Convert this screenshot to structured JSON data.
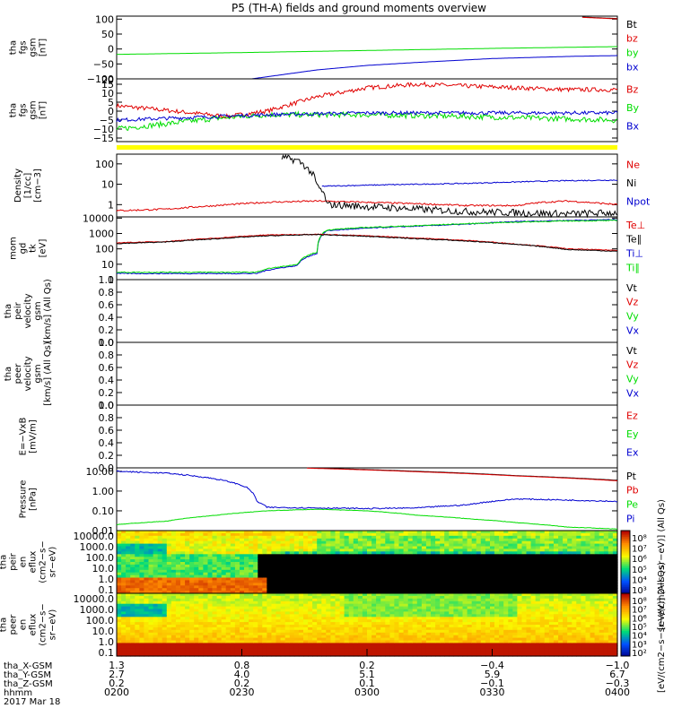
{
  "title": "P5 (TH-A) fields and ground moments overview",
  "colors": {
    "black": "#000000",
    "red": "#e00000",
    "green": "#00dd00",
    "blue": "#0000d0",
    "yellow": "#ffff00"
  },
  "chart_data": [
    {
      "id": "fgs_gsm",
      "type": "line",
      "ylabel": [
        "tha",
        "fgs",
        "gsm",
        "[nT]"
      ],
      "yticks": [
        "100",
        "50",
        "0",
        "−50",
        "−100"
      ],
      "yvalues": [
        100,
        50,
        0,
        -50,
        -100
      ],
      "ylim": [
        -100,
        110
      ],
      "legend": [
        {
          "text": "Bt",
          "color": "black"
        },
        {
          "text": "bz",
          "color": "red"
        },
        {
          "text": "by",
          "color": "green"
        },
        {
          "text": "bx",
          "color": "blue"
        }
      ],
      "series": [
        {
          "name": "by",
          "color": "green",
          "x": [
            0.0,
            0.25,
            0.5,
            0.75,
            1.0
          ],
          "y": [
            -18,
            -12,
            -5,
            2,
            8
          ]
        },
        {
          "name": "bx",
          "color": "blue",
          "x": [
            0.27,
            0.4,
            0.5,
            0.6,
            0.75,
            0.9,
            1.0
          ],
          "y": [
            -100,
            -70,
            -55,
            -45,
            -32,
            -25,
            -22
          ]
        },
        {
          "name": "Bt",
          "color": "black",
          "x": [
            0.93,
            0.97,
            1.0
          ],
          "y": [
            107,
            104,
            102
          ]
        },
        {
          "name": "bz",
          "color": "red",
          "x": [
            0.93,
            0.97,
            1.0
          ],
          "y": [
            106,
            103,
            101
          ]
        }
      ]
    },
    {
      "id": "fgs_gsm_zoom",
      "type": "line",
      "ylabel": [
        "tha",
        "fgs",
        "gsm",
        "[nT]"
      ],
      "yticks": [
        "15",
        "10",
        "5",
        "0",
        "−5",
        "−10",
        "−15"
      ],
      "yvalues": [
        15,
        10,
        5,
        0,
        -5,
        -10,
        -15
      ],
      "ylim": [
        -17,
        18
      ],
      "extra_ticks": [
        "20"
      ],
      "legend": [
        {
          "text": "Bz",
          "color": "red"
        },
        {
          "text": "By",
          "color": "green"
        },
        {
          "text": "Bx",
          "color": "blue"
        }
      ],
      "series": [
        {
          "name": "Bz",
          "color": "red",
          "noise": 1.2,
          "x": [
            0.0,
            0.08,
            0.15,
            0.22,
            0.3,
            0.4,
            0.5,
            0.6,
            0.7,
            0.8,
            0.9,
            1.0
          ],
          "y": [
            3,
            1,
            -1,
            -3,
            0,
            8,
            13,
            15,
            14,
            13,
            12,
            12
          ]
        },
        {
          "name": "By",
          "color": "green",
          "noise": 1.5,
          "x": [
            0.0,
            0.1,
            0.2,
            0.25,
            0.3,
            0.5,
            0.7,
            0.85,
            1.0
          ],
          "y": [
            -10,
            -7,
            -4,
            -3,
            -2,
            -2,
            -3,
            -4,
            -5
          ]
        },
        {
          "name": "Bx",
          "color": "blue",
          "noise": 1.0,
          "x": [
            0.0,
            0.1,
            0.2,
            0.3,
            0.5,
            0.7,
            0.9,
            1.0
          ],
          "y": [
            -5,
            -4,
            -3,
            -2,
            -1,
            -1,
            -1,
            -1
          ]
        }
      ]
    },
    {
      "id": "density",
      "type": "line",
      "log": true,
      "ylabel": [
        "Density",
        "[1/cc]",
        "[cm−3]"
      ],
      "yticks": [
        "100",
        "10",
        "1"
      ],
      "yvalues": [
        100,
        10,
        1
      ],
      "ylim": [
        0.25,
        300
      ],
      "legend": [
        {
          "text": "Ne",
          "color": "red"
        },
        {
          "text": "Ni",
          "color": "black"
        },
        {
          "text": "Npot",
          "color": "blue"
        }
      ],
      "series": [
        {
          "name": "Npot",
          "color": "blue",
          "noise": 0.05,
          "x": [
            0.41,
            0.5,
            0.6,
            0.7,
            0.8,
            0.9,
            1.0
          ],
          "y": [
            8,
            9,
            10,
            11,
            13,
            15,
            16
          ]
        },
        {
          "name": "Ne",
          "color": "red",
          "noise": 0.08,
          "x": [
            0.0,
            0.1,
            0.2,
            0.3,
            0.4,
            0.5,
            0.6,
            0.7,
            0.8,
            0.85,
            0.9,
            1.0
          ],
          "y": [
            0.5,
            0.6,
            0.9,
            1.3,
            1.5,
            1.3,
            1.1,
            0.9,
            0.9,
            1.3,
            1.5,
            1.0
          ]
        },
        {
          "name": "Ni",
          "color": "black",
          "noise": 0.35,
          "x": [
            0.33,
            0.36,
            0.38,
            0.4,
            0.42,
            0.5,
            0.6,
            0.7,
            0.8,
            0.9,
            1.0
          ],
          "y": [
            200,
            150,
            60,
            8,
            1,
            0.8,
            0.6,
            0.45,
            0.4,
            0.35,
            0.4
          ]
        }
      ]
    },
    {
      "id": "mom",
      "type": "line",
      "log": true,
      "ylabel": [
        "mom",
        "gd",
        "tk",
        "[eV]"
      ],
      "yticks": [
        "10000",
        "1000",
        "100",
        "10",
        "1"
      ],
      "yvalues": [
        10000,
        1000,
        100,
        10,
        1
      ],
      "ylim": [
        1,
        12000
      ],
      "legend": [
        {
          "text": "Te⊥",
          "color": "red"
        },
        {
          "text": "Te∥",
          "color": "black"
        },
        {
          "text": "Ti⊥",
          "color": "blue"
        },
        {
          "text": "Ti∥",
          "color": "green"
        }
      ],
      "series": [
        {
          "name": "Ti⊥",
          "color": "blue",
          "noise": 0.06,
          "x": [
            0.0,
            0.28,
            0.3,
            0.36,
            0.4,
            0.42,
            0.5,
            0.6,
            0.7,
            0.8,
            0.9,
            1.0
          ],
          "y": [
            2.5,
            2.5,
            4,
            8,
            50,
            1500,
            2200,
            3000,
            4000,
            6000,
            7000,
            8000
          ]
        },
        {
          "name": "Ti∥",
          "color": "green",
          "noise": 0.06,
          "x": [
            0.0,
            0.28,
            0.3,
            0.36,
            0.4,
            0.42,
            0.5,
            0.6,
            0.7,
            0.8,
            0.9,
            1.0
          ],
          "y": [
            3,
            3,
            5,
            9,
            60,
            1700,
            2500,
            3200,
            4300,
            5500,
            6500,
            7000
          ]
        },
        {
          "name": "Te⊥",
          "color": "red",
          "noise": 0.05,
          "x": [
            0.0,
            0.1,
            0.2,
            0.3,
            0.4,
            0.5,
            0.6,
            0.7,
            0.8,
            0.9,
            1.0
          ],
          "y": [
            250,
            300,
            500,
            800,
            900,
            700,
            500,
            350,
            200,
            100,
            80
          ]
        },
        {
          "name": "Te∥",
          "color": "black",
          "noise": 0.05,
          "x": [
            0.0,
            0.1,
            0.2,
            0.3,
            0.4,
            0.5,
            0.6,
            0.7,
            0.8,
            0.9,
            1.0
          ],
          "y": [
            220,
            280,
            450,
            700,
            850,
            650,
            450,
            320,
            190,
            90,
            70
          ]
        }
      ]
    },
    {
      "id": "peir_vel",
      "type": "line",
      "ylabel": [
        "tha",
        "peir",
        "velocity",
        "gsm",
        "[km/s] (All Qs)"
      ],
      "yticks": [
        "1.0",
        "0.8",
        "0.6",
        "0.4",
        "0.2",
        "0.0"
      ],
      "yvalues": [
        1,
        0.8,
        0.6,
        0.4,
        0.2,
        0
      ],
      "ylim": [
        0,
        1
      ],
      "legend": [
        {
          "text": "Vt",
          "color": "black"
        },
        {
          "text": "Vz",
          "color": "red"
        },
        {
          "text": "Vy",
          "color": "green"
        },
        {
          "text": "Vx",
          "color": "blue"
        }
      ],
      "series": []
    },
    {
      "id": "peer_vel",
      "type": "line",
      "ylabel": [
        "tha",
        "peer",
        "velocity",
        "gsm",
        "[km/s] (All Qs)"
      ],
      "yticks": [
        "1.0",
        "0.8",
        "0.6",
        "0.4",
        "0.2",
        "0.0"
      ],
      "yvalues": [
        1,
        0.8,
        0.6,
        0.4,
        0.2,
        0
      ],
      "ylim": [
        0,
        1
      ],
      "legend": [
        {
          "text": "Vt",
          "color": "black"
        },
        {
          "text": "Vz",
          "color": "red"
        },
        {
          "text": "Vy",
          "color": "green"
        },
        {
          "text": "Vx",
          "color": "blue"
        }
      ],
      "series": []
    },
    {
      "id": "e_field",
      "type": "line",
      "ylabel": [
        "E=−VxB",
        "[mV/m]"
      ],
      "yticks": [
        "1.0",
        "0.8",
        "0.6",
        "0.4",
        "0.2",
        "0.0"
      ],
      "yvalues": [
        1,
        0.8,
        0.6,
        0.4,
        0.2,
        0
      ],
      "ylim": [
        0,
        1
      ],
      "legend": [
        {
          "text": "Ez",
          "color": "red"
        },
        {
          "text": "Ey",
          "color": "green"
        },
        {
          "text": "Ex",
          "color": "blue"
        }
      ],
      "series": []
    },
    {
      "id": "pressure",
      "type": "line",
      "log": true,
      "ylabel": [
        "Pressure",
        "[nPa]"
      ],
      "yticks": [
        "10.00",
        "1.00",
        "0.10",
        "0.01"
      ],
      "yvalues": [
        10,
        1,
        0.1,
        0.01
      ],
      "ylim": [
        0.01,
        15
      ],
      "legend": [
        {
          "text": "Pt",
          "color": "black"
        },
        {
          "text": "Pb",
          "color": "red"
        },
        {
          "text": "Pe",
          "color": "green"
        },
        {
          "text": "Pi",
          "color": "blue"
        }
      ],
      "series": [
        {
          "name": "Pi",
          "color": "blue",
          "noise": 0.06,
          "x": [
            0.0,
            0.1,
            0.2,
            0.26,
            0.28,
            0.3,
            0.4,
            0.5,
            0.6,
            0.7,
            0.8,
            0.9,
            1.0
          ],
          "y": [
            10,
            8,
            4,
            1.5,
            0.3,
            0.15,
            0.14,
            0.13,
            0.14,
            0.2,
            0.4,
            0.35,
            0.3
          ]
        },
        {
          "name": "Pe",
          "color": "green",
          "noise": 0.02,
          "x": [
            0.0,
            0.1,
            0.2,
            0.3,
            0.4,
            0.5,
            0.6,
            0.7,
            0.8,
            0.9,
            1.0
          ],
          "y": [
            0.02,
            0.03,
            0.06,
            0.1,
            0.12,
            0.1,
            0.06,
            0.04,
            0.025,
            0.015,
            0.012
          ]
        },
        {
          "name": "Pt",
          "color": "black",
          "x": [
            0.38,
            0.6,
            0.8,
            1.0
          ],
          "y": [
            15,
            10,
            6,
            3.5
          ]
        },
        {
          "name": "Pb",
          "color": "red",
          "x": [
            0.38,
            0.6,
            0.8,
            1.0
          ],
          "y": [
            14.5,
            9.5,
            5.8,
            3.3
          ]
        }
      ]
    }
  ],
  "spectra": [
    {
      "id": "peir_spec",
      "ylabel": [
        "tha",
        "peir",
        "en",
        "eflux",
        "(cm2−s−",
        "sr−eV)"
      ],
      "yticks": [
        "10000.0",
        "1000.0",
        "100.0",
        "10.0",
        "1.0",
        "0.1"
      ]
    },
    {
      "id": "peer_spec",
      "ylabel": [
        "tha",
        "peer",
        "en",
        "eflux",
        "(cm2−s−",
        "sr−eV)"
      ],
      "yticks": [
        "10000.0",
        "1000.0",
        "100.0",
        "10.0",
        "1.0",
        "0.1"
      ]
    }
  ],
  "colorbar": {
    "label": "[eV/(cm2−s−sr−eV)] (All Qs)",
    "label_top": "[eV/(cm2−s−sr−eV)] (All Qs)",
    "ticks_top": [
      "10⁸",
      "10⁷",
      "10⁶",
      "10⁵",
      "10⁴",
      "10³"
    ],
    "ticks_bottom": [
      "10⁸",
      "10⁷",
      "10⁶",
      "10⁵",
      "10⁴",
      "10³",
      "10²"
    ]
  },
  "xaxis": {
    "labels": [
      {
        "name": "tha_X-GSM",
        "values": [
          "1.3",
          "0.8",
          "0.2",
          "−0.4",
          "−1.0"
        ]
      },
      {
        "name": "tha_Y-GSM",
        "values": [
          "2.7",
          "4.0",
          "5.1",
          "5.9",
          "6.7"
        ]
      },
      {
        "name": "tha_Z-GSM",
        "values": [
          "0.2",
          "0.2",
          "0.1",
          "−0.1",
          "−0.3"
        ]
      },
      {
        "name": "hhmm",
        "values": [
          "0200",
          "0230",
          "0300",
          "0330",
          "0400"
        ]
      }
    ],
    "date": "2017 Mar 18"
  }
}
